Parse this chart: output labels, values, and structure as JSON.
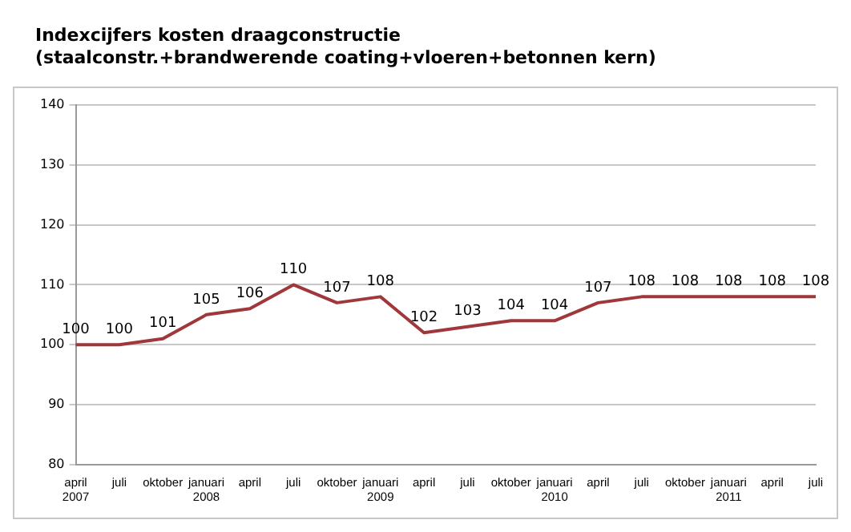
{
  "chart_data": {
    "type": "line",
    "title": "Indexcijfers kosten draagconstructie",
    "subtitle": "(staalconstr.+brandwerende coating+vloeren+betonnen kern)",
    "categories": [
      "april\n2007",
      "juli",
      "oktober",
      "januari\n2008",
      "april",
      "juli",
      "oktober",
      "januari\n2009",
      "april",
      "juli",
      "oktober",
      "januari\n2010",
      "april",
      "juli",
      "oktober",
      "januari\n2011",
      "april",
      "juli"
    ],
    "series": [
      {
        "color": "#a0373a",
        "values": [
          100,
          100,
          101,
          105,
          106,
          110,
          107,
          108,
          102,
          103,
          104,
          104,
          107,
          108,
          108,
          108,
          108,
          108
        ]
      }
    ],
    "ylim": [
      80,
      140
    ],
    "yticks": [
      80,
      90,
      100,
      110,
      120,
      130,
      140
    ],
    "grid": "y",
    "legend": false,
    "marker": "none",
    "line_style": "solid",
    "data_labels": true
  }
}
